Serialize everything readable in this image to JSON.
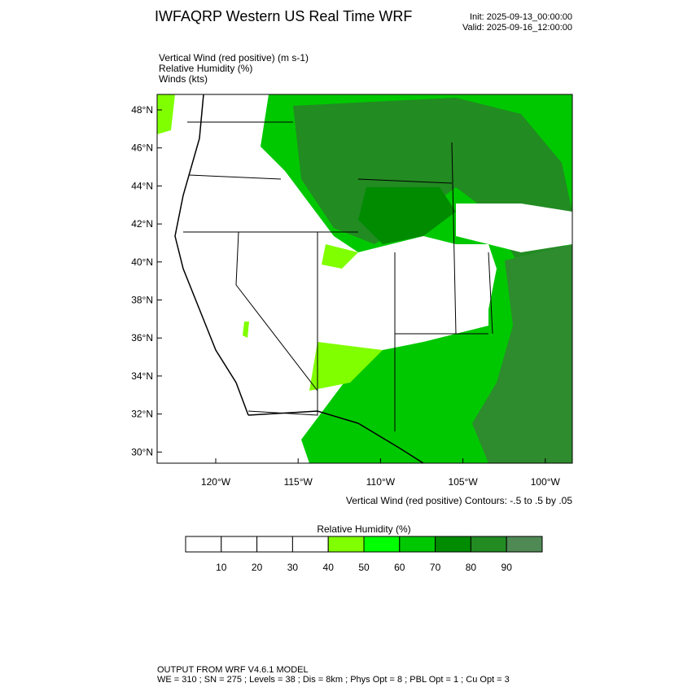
{
  "header": {
    "title": "IWFAQRP Western US Real Time WRF",
    "init": "Init: 2025-09-13_00:00:00",
    "valid": "Valid: 2025-09-16_12:00:00"
  },
  "fields": [
    "Vertical Wind (red positive)   (m s-1)",
    "Relative Humidity   (%)",
    "Winds   (kts)"
  ],
  "map": {
    "lat_ticks": [
      "48°N",
      "46°N",
      "44°N",
      "42°N",
      "40°N",
      "38°N",
      "36°N",
      "34°N",
      "32°N",
      "30°N"
    ],
    "lon_ticks": [
      "120°W",
      "115°W",
      "110°W",
      "105°W",
      "100°W"
    ],
    "contour_note": "Vertical Wind (red positive) Contours: -.5 to .5 by .05"
  },
  "colorbar": {
    "title": "Relative Humidity  (%)",
    "labels": [
      "10",
      "20",
      "30",
      "40",
      "50",
      "60",
      "70",
      "80",
      "90"
    ],
    "colors": [
      "#ffffff",
      "#ffffff",
      "#ffffff",
      "#ffffff",
      "#80ff00",
      "#00ff00",
      "#00c800",
      "#008b00",
      "#228b22",
      "#4f8a55"
    ]
  },
  "footer": {
    "line1": "OUTPUT FROM WRF V4.6.1 MODEL",
    "line2": "WE = 310 ; SN = 275 ; Levels = 38 ; Dis = 8km ; Phys Opt = 8 ; PBL Opt = 1 ; Cu Opt = 3"
  }
}
